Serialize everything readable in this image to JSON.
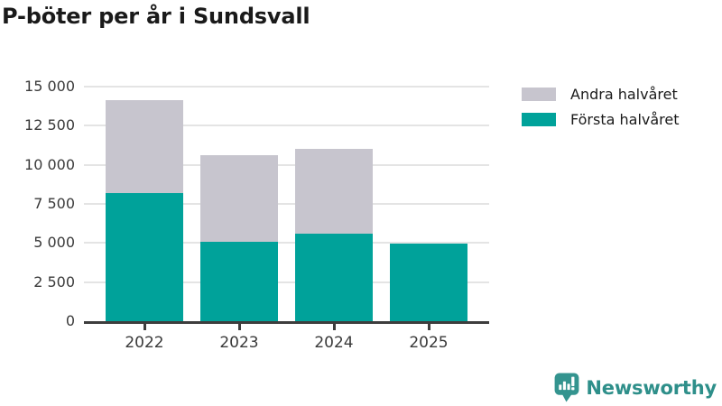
{
  "title": "P-böter per år i Sundsvall",
  "chart_data": {
    "type": "bar",
    "stacked": true,
    "title": "P-böter per år i Sundsvall",
    "categories": [
      "2022",
      "2023",
      "2024",
      "2025"
    ],
    "series": [
      {
        "name": "Första halvåret",
        "color": "#00a29a",
        "values": [
          8200,
          5100,
          5600,
          4950
        ]
      },
      {
        "name": "Andra halvåret",
        "color": "#c7c5ce",
        "values": [
          5950,
          5500,
          5400,
          0
        ]
      }
    ],
    "totals": [
      14150,
      10600,
      11000,
      4950
    ],
    "ylim": [
      0,
      15000
    ],
    "ytick_step": 2500,
    "ytick_labels": [
      "0",
      "2 500",
      "5 000",
      "7 500",
      "10 000",
      "12 500",
      "15 000"
    ],
    "xlabel": "",
    "ylabel": "",
    "grid": true,
    "legend_position": "top-right"
  },
  "legend": {
    "items": [
      {
        "label": "Andra halvåret",
        "color": "#c7c5ce"
      },
      {
        "label": "Första halvåret",
        "color": "#00a29a"
      }
    ]
  },
  "footer": {
    "brand": "Newsworthy",
    "logo_icon": "bar-chart-speech-bubble-icon",
    "brand_color": "#2e8f8a",
    "icon_color": "#34948f"
  }
}
